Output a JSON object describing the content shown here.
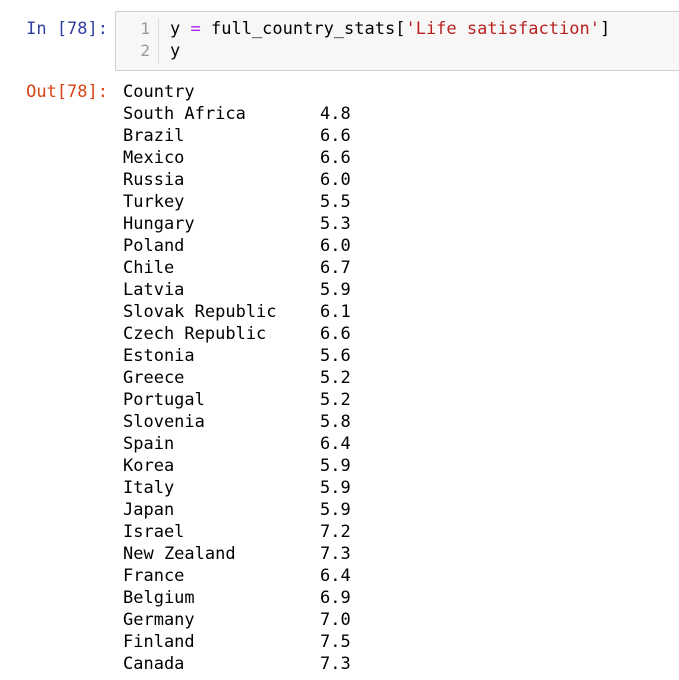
{
  "input_cell": {
    "prompt": "In [78]:",
    "lines": [
      {
        "number": "1",
        "var": "y",
        "op": "=",
        "expr": "full_country_stats[",
        "string": "'Life satisfaction'",
        "close": "]"
      },
      {
        "number": "2",
        "text": "y"
      }
    ]
  },
  "output_cell": {
    "prompt": "Out[78]:",
    "index_name": "Country",
    "rows": [
      {
        "name": "South Africa",
        "value": "4.8"
      },
      {
        "name": "Brazil",
        "value": "6.6"
      },
      {
        "name": "Mexico",
        "value": "6.6"
      },
      {
        "name": "Russia",
        "value": "6.0"
      },
      {
        "name": "Turkey",
        "value": "5.5"
      },
      {
        "name": "Hungary",
        "value": "5.3"
      },
      {
        "name": "Poland",
        "value": "6.0"
      },
      {
        "name": "Chile",
        "value": "6.7"
      },
      {
        "name": "Latvia",
        "value": "5.9"
      },
      {
        "name": "Slovak Republic",
        "value": "6.1"
      },
      {
        "name": "Czech Republic",
        "value": "6.6"
      },
      {
        "name": "Estonia",
        "value": "5.6"
      },
      {
        "name": "Greece",
        "value": "5.2"
      },
      {
        "name": "Portugal",
        "value": "5.2"
      },
      {
        "name": "Slovenia",
        "value": "5.8"
      },
      {
        "name": "Spain",
        "value": "6.4"
      },
      {
        "name": "Korea",
        "value": "5.9"
      },
      {
        "name": "Italy",
        "value": "5.9"
      },
      {
        "name": "Japan",
        "value": "5.9"
      },
      {
        "name": "Israel",
        "value": "7.2"
      },
      {
        "name": "New Zealand",
        "value": "7.3"
      },
      {
        "name": "France",
        "value": "6.4"
      },
      {
        "name": "Belgium",
        "value": "6.9"
      },
      {
        "name": "Germany",
        "value": "7.0"
      },
      {
        "name": "Finland",
        "value": "7.5"
      },
      {
        "name": "Canada",
        "value": "7.3"
      }
    ]
  },
  "colors": {
    "in_prompt": "#303f9f",
    "out_prompt": "#d84315",
    "operator": "#aa22ff",
    "string": "#ba2121",
    "input_background": "#f7f7f7"
  }
}
